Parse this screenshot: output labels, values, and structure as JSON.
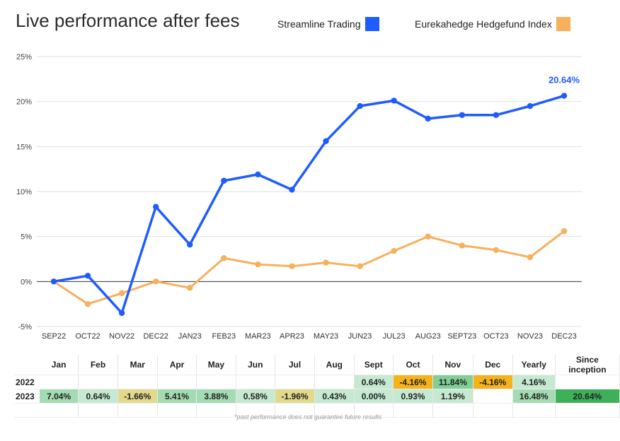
{
  "title": "Live performance after fees",
  "legend": [
    {
      "label": "Streamline Trading",
      "color": "#1f5cff"
    },
    {
      "label": "Eurekahedge Hedgefund Index",
      "color": "#f7b05b"
    }
  ],
  "chart_data": {
    "type": "line",
    "x": [
      "SEP22",
      "OCT22",
      "NOV22",
      "DEC22",
      "JAN23",
      "FEB23",
      "MAR23",
      "APR23",
      "MAY23",
      "JUN23",
      "JUL23",
      "AUG23",
      "SEPT23",
      "OCT23",
      "NOV23",
      "DEC23"
    ],
    "yticks": [
      "25%",
      "20%",
      "15%",
      "10%",
      "5%",
      "0%",
      "-5%"
    ],
    "ylim": [
      -5,
      25
    ],
    "series": [
      {
        "name": "Streamline Trading",
        "color": "#1f5cff",
        "values": [
          0,
          0.64,
          -3.5,
          8.3,
          4.1,
          11.2,
          11.9,
          10.2,
          15.6,
          19.5,
          20.1,
          18.1,
          18.5,
          18.5,
          19.5,
          20.64
        ]
      },
      {
        "name": "Eurekahedge Hedgefund Index",
        "color": "#f7b05b",
        "values": [
          0,
          -2.5,
          -1.3,
          0.0,
          -0.7,
          2.6,
          1.9,
          1.7,
          2.1,
          1.7,
          3.4,
          5.0,
          4.0,
          3.5,
          2.7,
          5.6
        ]
      }
    ],
    "end_label": "20.64%",
    "grid": true
  },
  "table": {
    "headers": [
      "Jan",
      "Feb",
      "Mar",
      "Apr",
      "May",
      "Jun",
      "Jul",
      "Aug",
      "Sept",
      "Oct",
      "Nov",
      "Dec",
      "Yearly",
      "Since inception"
    ],
    "rows": [
      {
        "year": "2022",
        "cells": [
          "",
          "",
          "",
          "",
          "",
          "",
          "",
          "",
          "0.64%",
          "-4.16%",
          "11.84%",
          "-4.16%",
          "4.16%",
          ""
        ],
        "colors": [
          "",
          "",
          "",
          "",
          "",
          "",
          "",
          "",
          "#c6e9d1",
          "#f6b21b",
          "#7fcf96",
          "#f6b21b",
          "#c6e9d1",
          ""
        ]
      },
      {
        "year": "2023",
        "cells": [
          "7.04%",
          "0.64%",
          "-1.66%",
          "5.41%",
          "3.88%",
          "0.58%",
          "-1.96%",
          "0.43%",
          "0.00%",
          "0.93%",
          "1.19%",
          "",
          "16.48%",
          "20.64%"
        ],
        "colors": [
          "#a3dcb3",
          "#c6e9d1",
          "#e2d98a",
          "#a3dcb3",
          "#a3dcb3",
          "#c6e9d1",
          "#e2d98a",
          "#c6e9d1",
          "#c6e9d1",
          "#c6e9d1",
          "#c6e9d1",
          "",
          "#a3dcb3",
          "#3fb05a"
        ]
      }
    ]
  },
  "footnote": "*past performance does not guarantee future results"
}
